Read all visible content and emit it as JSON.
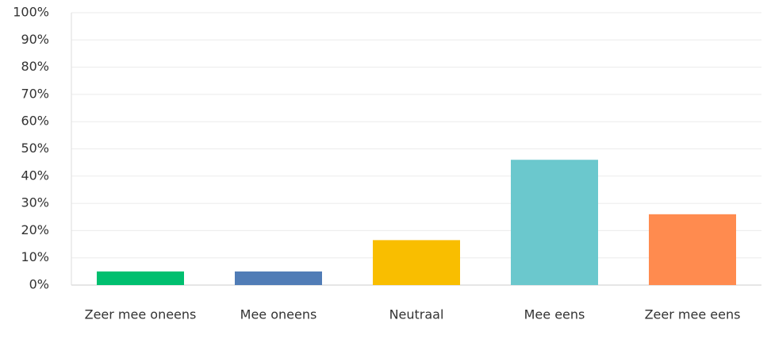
{
  "chart_data": {
    "type": "bar",
    "categories": [
      "Zeer mee oneens",
      "Mee oneens",
      "Neutraal",
      "Mee eens",
      "Zeer mee eens"
    ],
    "values": [
      5,
      5,
      16.5,
      46,
      26
    ],
    "colors": [
      "#00bf6f",
      "#507cb6",
      "#f9be00",
      "#6bc8cd",
      "#ff8b4f"
    ],
    "ylim": [
      0,
      100
    ],
    "yticks": [
      {
        "value": 0,
        "label": "0%"
      },
      {
        "value": 10,
        "label": "10%"
      },
      {
        "value": 20,
        "label": "20%"
      },
      {
        "value": 30,
        "label": "30%"
      },
      {
        "value": 40,
        "label": "40%"
      },
      {
        "value": 50,
        "label": "50%"
      },
      {
        "value": 60,
        "label": "60%"
      },
      {
        "value": 70,
        "label": "70%"
      },
      {
        "value": 80,
        "label": "80%"
      },
      {
        "value": 90,
        "label": "90%"
      },
      {
        "value": 100,
        "label": "100%"
      }
    ],
    "grid": true
  }
}
